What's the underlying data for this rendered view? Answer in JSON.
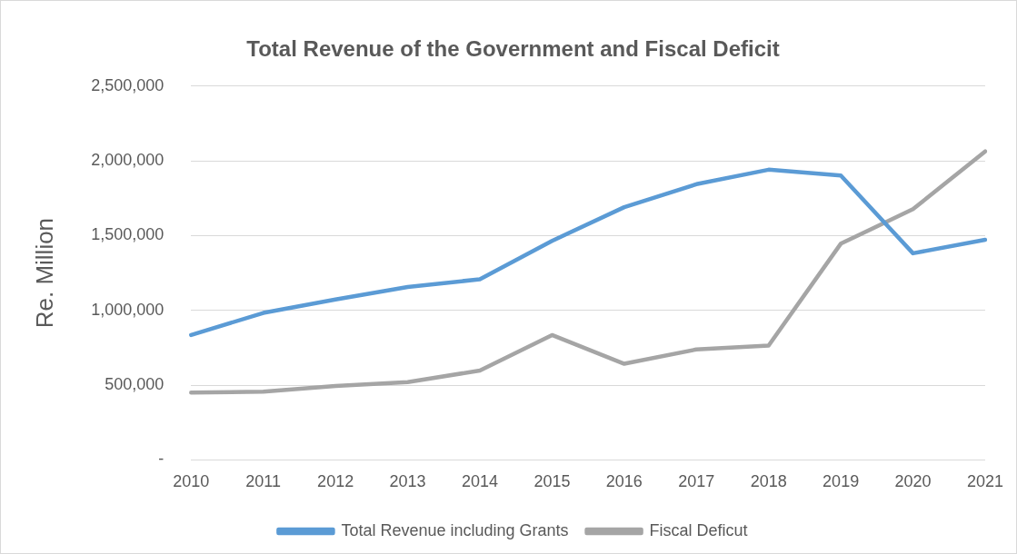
{
  "chart_data": {
    "type": "line",
    "title": "Total Revenue of the Government and Fiscal Deficit",
    "ylabel": "Re. Million",
    "categories": [
      "2010",
      "2011",
      "2012",
      "2013",
      "2014",
      "2015",
      "2016",
      "2017",
      "2018",
      "2019",
      "2020",
      "2021"
    ],
    "series": [
      {
        "name": "Total Revenue including Grants",
        "color": "#5b9bd5",
        "values": [
          835000,
          983000,
          1073000,
          1157000,
          1208000,
          1465000,
          1690000,
          1844000,
          1941000,
          1902000,
          1382000,
          1472000
        ]
      },
      {
        "name": "Fiscal Deficut",
        "color": "#a5a5a5",
        "values": [
          450000,
          456000,
          495000,
          520000,
          598000,
          835000,
          643000,
          739000,
          765000,
          1446000,
          1677000,
          2063000
        ]
      }
    ],
    "ylim": [
      0,
      2500000
    ],
    "yticks": [
      {
        "value": 0,
        "label": "-"
      },
      {
        "value": 500000,
        "label": "500,000"
      },
      {
        "value": 1000000,
        "label": "1,000,000"
      },
      {
        "value": 1500000,
        "label": "1,500,000"
      },
      {
        "value": 2000000,
        "label": "2,000,000"
      },
      {
        "value": 2500000,
        "label": "2,500,000"
      }
    ],
    "grid": "y",
    "legend": "bottom",
    "marker": "none",
    "line_style": "solid"
  }
}
